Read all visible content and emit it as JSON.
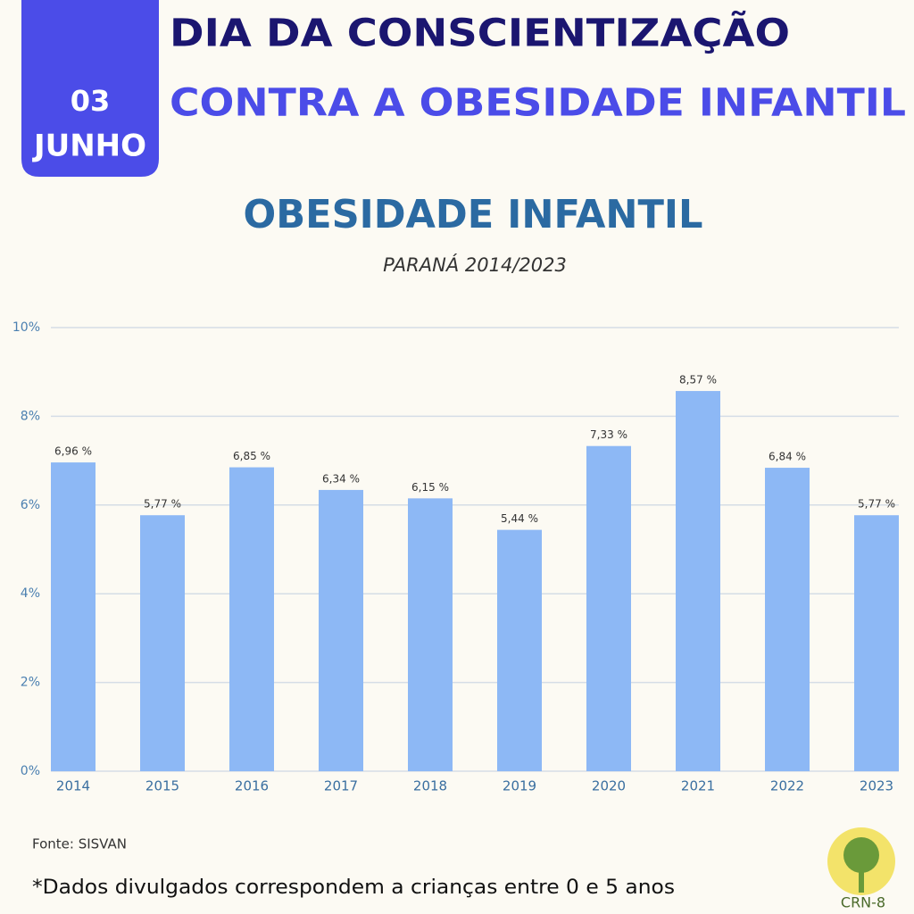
{
  "header": {
    "day": "03",
    "month": "JUNHO",
    "line1": "DIA DA CONSCIENTIZAÇÃO",
    "line2": "CONTRA A OBESIDADE INFANTIL"
  },
  "chart_data": {
    "type": "bar",
    "title": "OBESIDADE INFANTIL",
    "subtitle": "PARANÁ 2014/2023",
    "categories": [
      "2014",
      "2015",
      "2016",
      "2017",
      "2018",
      "2019",
      "2020",
      "2021",
      "2022",
      "2023"
    ],
    "values": [
      6.96,
      5.77,
      6.85,
      6.34,
      6.15,
      5.44,
      7.33,
      8.57,
      6.84,
      5.77
    ],
    "value_labels": [
      "6,96 %",
      "5,77 %",
      "6,85 %",
      "6,34 %",
      "6,15 %",
      "5,44 %",
      "7,33 %",
      "8,57 %",
      "6,84 %",
      "5,77 %"
    ],
    "color": "#8db8f5",
    "ylim": [
      0,
      10
    ],
    "yticks": [
      {
        "value": 0,
        "label": "0%"
      },
      {
        "value": 2,
        "label": "2%"
      },
      {
        "value": 4,
        "label": "4%"
      },
      {
        "value": 6,
        "label": "6%"
      },
      {
        "value": 8,
        "label": "8%"
      },
      {
        "value": 10,
        "label": "10%"
      }
    ],
    "grid": true
  },
  "footer": {
    "source": "Fonte: SISVAN",
    "note": "*Dados divulgados correspondem a crianças entre 0 e 5 anos"
  },
  "logo": {
    "label": "CRN-8"
  }
}
